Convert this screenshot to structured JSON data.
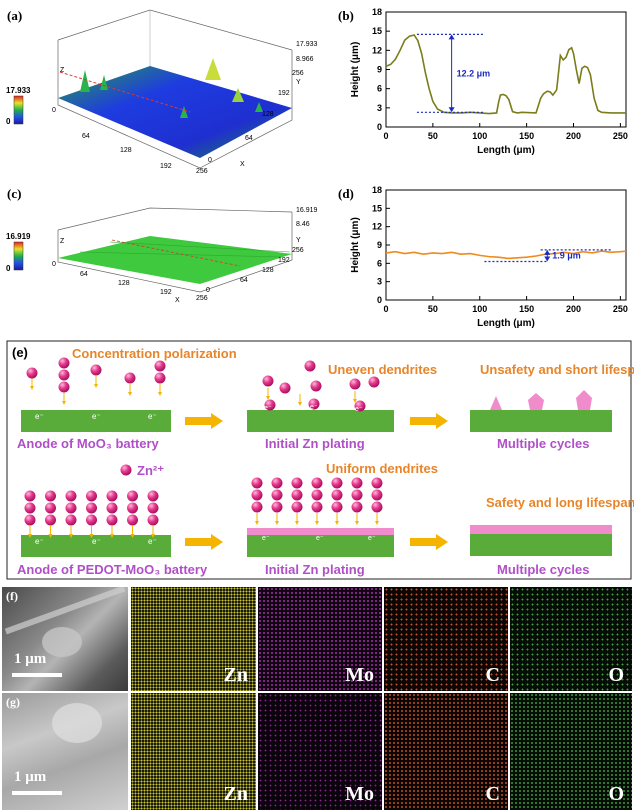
{
  "panels": {
    "a": {
      "label": "(a)",
      "axis_z": "Z",
      "axis_x": "X",
      "axis_y": "Y",
      "zmax": "17.933",
      "zmid": "8.966",
      "zmin": "0",
      "colorbar_max": "17.933",
      "colorbar_min": "0",
      "x_ticks": [
        "0",
        "64",
        "128",
        "192",
        "256"
      ],
      "y_ticks": [
        "0",
        "64",
        "128",
        "192",
        "256"
      ],
      "colors": {
        "low": "#1a2bd6",
        "mid": "#1fb14a",
        "high": "#d6e32a"
      }
    },
    "c": {
      "label": "(c)",
      "axis_z": "Z",
      "axis_x": "X",
      "axis_y": "Y",
      "zmax": "16.919",
      "zmid": "8.46",
      "zmin": "0",
      "colorbar_max": "16.919",
      "colorbar_min": "0",
      "x_ticks": [
        "0",
        "64",
        "128",
        "192",
        "256"
      ],
      "y_ticks": [
        "0",
        "64",
        "128",
        "192",
        "256"
      ],
      "colors": {
        "plane": "#3ec93e"
      }
    },
    "e": {
      "label": "(e)",
      "row1": {
        "title1": "Concentration polarization",
        "title2": "Uneven dendrites",
        "title3": "Unsafety and short lifespan",
        "cap1": "Anode of MoO₃ battery",
        "cap2": "Initial Zn plating",
        "cap3": "Multiple cycles"
      },
      "row2": {
        "legend": "Zn²⁺",
        "title2": "Uniform dendrites",
        "title3": "Safety and long lifespan",
        "cap1": "Anode of PEDOT-MoO₃ battery",
        "cap2": "Initial Zn plating",
        "cap3": "Multiple cycles"
      },
      "electron": "e⁻",
      "colors": {
        "electrode": "#5aac3a",
        "orange": "#e8852a",
        "violet": "#b04fc8",
        "ion": "#e0307f",
        "pink": "#f08ccc",
        "arrow": "#f5b400"
      }
    },
    "f": {
      "label": "(f)",
      "scale": "1 μm",
      "elements": [
        "Zn",
        "Mo",
        "C",
        "O"
      ]
    },
    "g": {
      "label": "(g)",
      "scale": "1 μm",
      "elements": [
        "Zn",
        "Mo",
        "C",
        "O"
      ]
    }
  },
  "chart_data": [
    {
      "panel_label": "(b)",
      "type": "line",
      "title": "",
      "xlabel": "Length (μm)",
      "ylabel": "Height (μm)",
      "xlim": [
        0,
        256
      ],
      "ylim": [
        0,
        18
      ],
      "x_ticks": [
        "0",
        "50",
        "100",
        "150",
        "200",
        "250"
      ],
      "y_ticks": [
        "0",
        "3",
        "6",
        "9",
        "12",
        "15",
        "18"
      ],
      "annotation": "12.2 μm",
      "ref_lines": [
        {
          "y": 14.5,
          "x0": 33,
          "x1": 105
        },
        {
          "y": 2.3,
          "x0": 33,
          "x1": 105
        }
      ],
      "color": "#7b7c1a",
      "series": [
        {
          "name": "MoO3",
          "x": [
            0,
            5,
            10,
            15,
            20,
            25,
            30,
            34,
            38,
            42,
            46,
            50,
            55,
            62,
            70,
            80,
            90,
            100,
            110,
            118,
            120,
            122,
            125,
            128,
            131,
            135,
            140,
            145,
            160,
            165,
            168,
            172,
            175,
            178,
            182,
            186,
            189,
            192,
            195,
            198,
            200,
            203,
            206,
            209,
            212,
            215,
            218,
            222,
            226,
            230,
            240,
            250,
            256
          ],
          "y": [
            9.5,
            9.8,
            10.6,
            12,
            13.6,
            14.2,
            14.4,
            13.5,
            11.5,
            8.5,
            6,
            4,
            2.8,
            2.3,
            2.2,
            2.2,
            2.3,
            2.2,
            2.1,
            2.2,
            3.8,
            5,
            5.1,
            4.9,
            4.3,
            2.4,
            2.2,
            2.3,
            2.2,
            4.5,
            5.2,
            5.6,
            5.5,
            5,
            5.8,
            11.2,
            10.5,
            10.9,
            12.1,
            12.4,
            11.5,
            9,
            6.8,
            9.2,
            9.5,
            9.3,
            8.2,
            4.5,
            2.6,
            2.3,
            2.2,
            2.2,
            2.2
          ]
        }
      ]
    },
    {
      "panel_label": "(d)",
      "type": "line",
      "title": "",
      "xlabel": "Length (μm)",
      "ylabel": "Height (μm)",
      "xlim": [
        0,
        256
      ],
      "ylim": [
        0,
        18
      ],
      "x_ticks": [
        "0",
        "50",
        "100",
        "150",
        "200",
        "250"
      ],
      "y_ticks": [
        "0",
        "3",
        "6",
        "9",
        "12",
        "15",
        "18"
      ],
      "annotation": "1.9 μm",
      "ref_lines": [
        {
          "y": 8.2,
          "x0": 165,
          "x1": 240
        },
        {
          "y": 6.3,
          "x0": 105,
          "x1": 172
        }
      ],
      "color": "#f08a1c",
      "series": [
        {
          "name": "PEDOT-MoO3",
          "x": [
            0,
            10,
            20,
            30,
            40,
            50,
            60,
            70,
            80,
            90,
            100,
            110,
            120,
            130,
            140,
            150,
            160,
            170,
            180,
            190,
            200,
            210,
            220,
            230,
            240,
            250,
            256
          ],
          "y": [
            7.7,
            7.9,
            7.6,
            7.8,
            7.5,
            7.7,
            7.6,
            7.8,
            7.5,
            7.6,
            7.3,
            7.1,
            7.0,
            6.8,
            6.9,
            7.0,
            7.2,
            7.5,
            7.6,
            7.8,
            7.6,
            7.9,
            7.7,
            8.0,
            7.8,
            7.9,
            8.0
          ]
        }
      ]
    }
  ]
}
